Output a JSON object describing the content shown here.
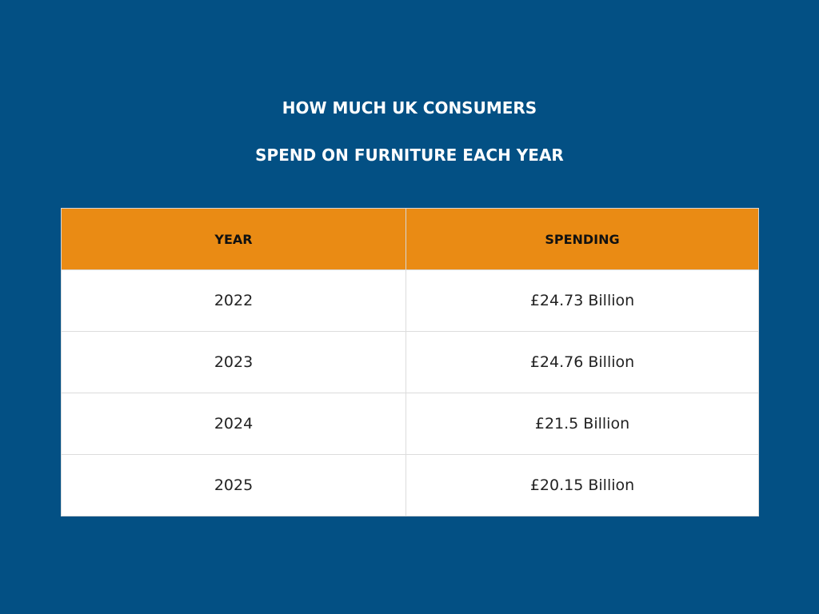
{
  "title": {
    "line1": "HOW MUCH UK CONSUMERS",
    "line2": "SPEND ON FURNITURE EACH YEAR"
  },
  "table": {
    "headers": [
      "YEAR",
      "SPENDING"
    ],
    "rows": [
      [
        "2022",
        "£24.73 Billion"
      ],
      [
        "2023",
        "£24.76 Billion"
      ],
      [
        "2024",
        "£21.5 Billion"
      ],
      [
        "2025",
        "£20.15 Billion"
      ]
    ]
  },
  "colors": {
    "background": "#035084",
    "header_fill": "#ea8b14",
    "title_text": "#ffffff"
  }
}
